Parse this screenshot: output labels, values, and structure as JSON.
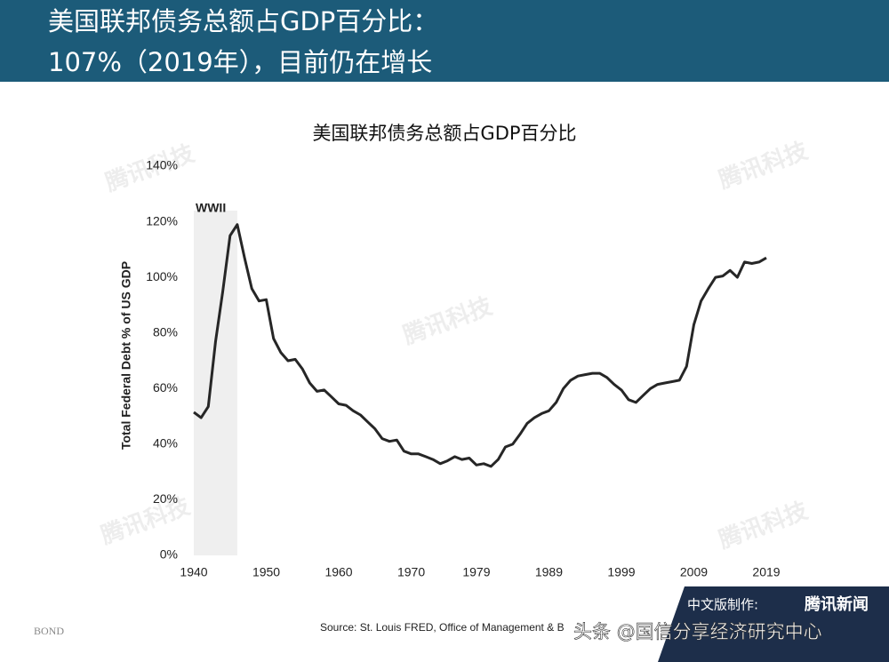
{
  "header": {
    "lines": [
      "美国联邦债务总额占GDP百分比：",
      "107%（2019年），目前仍在增长"
    ]
  },
  "chart_data": {
    "type": "line",
    "title": "美国联邦债务总额占GDP百分比",
    "y_label": "Total Federal Debt % of US GDP",
    "source": "Source: St. Louis FRED, Office of Management & B",
    "annotation": {
      "label": "WWII",
      "start": 1940,
      "end": 1946
    },
    "x": [
      1940,
      1941,
      1942,
      1943,
      1944,
      1945,
      1946,
      1947,
      1948,
      1949,
      1950,
      1951,
      1952,
      1953,
      1954,
      1955,
      1956,
      1957,
      1958,
      1959,
      1960,
      1961,
      1962,
      1963,
      1964,
      1965,
      1966,
      1967,
      1968,
      1969,
      1970,
      1971,
      1972,
      1973,
      1974,
      1975,
      1976,
      1977,
      1978,
      1979,
      1980,
      1981,
      1982,
      1983,
      1984,
      1985,
      1986,
      1987,
      1988,
      1989,
      1990,
      1991,
      1992,
      1993,
      1994,
      1995,
      1996,
      1997,
      1998,
      1999,
      2000,
      2001,
      2002,
      2003,
      2004,
      2005,
      2006,
      2007,
      2008,
      2009,
      2010,
      2011,
      2012,
      2013,
      2014,
      2015,
      2016,
      2017,
      2018,
      2019
    ],
    "series": [
      {
        "name": "Total Federal Debt % of US GDP",
        "color": "#262626",
        "values": [
          51.5,
          49.5,
          53.5,
          77,
          95,
          115,
          119,
          107,
          96,
          91.5,
          92,
          78,
          73,
          70,
          70.5,
          67,
          62,
          59,
          59.5,
          57,
          54.5,
          54,
          52,
          50.5,
          48,
          45.5,
          42,
          41,
          41.5,
          37.5,
          36.5,
          36.5,
          35.5,
          34.5,
          33,
          34,
          35.5,
          34.5,
          35,
          32.5,
          33,
          32,
          34.5,
          39,
          40,
          43.5,
          47.5,
          49.5,
          51,
          52,
          55,
          60,
          63,
          64.5,
          65,
          65.5,
          65.5,
          64,
          61.5,
          59.5,
          56,
          55,
          57.5,
          60,
          61.5,
          62,
          62.5,
          63,
          68,
          83,
          91.5,
          96,
          100,
          100.5,
          102.5,
          100,
          105.5,
          105,
          105.5,
          107
        ]
      }
    ],
    "xlim": [
      1940,
      2019
    ],
    "xticks": [
      1940,
      1950,
      1960,
      1970,
      1979,
      1989,
      1999,
      2009,
      2019
    ],
    "ylim": [
      0,
      140
    ],
    "yticks": [
      {
        "value": 0,
        "label": "0%"
      },
      {
        "value": 20,
        "label": "20%"
      },
      {
        "value": 40,
        "label": "40%"
      },
      {
        "value": 60,
        "label": "60%"
      },
      {
        "value": 80,
        "label": "80%"
      },
      {
        "value": 100,
        "label": "100%"
      },
      {
        "value": 120,
        "label": "120%"
      },
      {
        "value": 140,
        "label": "140%"
      }
    ],
    "grid": false
  },
  "footer": {
    "brand": "BOND",
    "credit_label": "中文版制作:",
    "credit_name": "腾讯新闻",
    "watermark": "腾讯科技",
    "repost": "头条 @国信分享经济研究中心"
  }
}
